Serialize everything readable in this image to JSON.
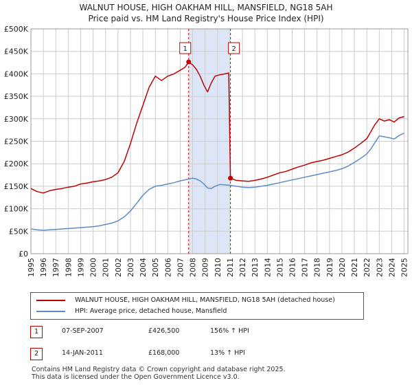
{
  "title": {
    "line1": "WALNUT HOUSE, HIGH OAKHAM HILL, MANSFIELD, NG18 5AH",
    "line2": "Price paid vs. HM Land Registry's House Price Index (HPI)"
  },
  "colors": {
    "property": "#c00000",
    "hpi": "#5b8cc8",
    "shade": "#dde6f7",
    "grid": "#cccccc",
    "marker_dash": "#c00000"
  },
  "chart_data": {
    "type": "line",
    "title": "WALNUT HOUSE, HIGH OAKHAM HILL, MANSFIELD, NG18 5AH",
    "xlabel": "",
    "ylabel": "",
    "xlim": [
      1995,
      2025.3
    ],
    "ylim": [
      0,
      500000
    ],
    "grid": true,
    "x_ticks": [
      "1995",
      "1996",
      "1997",
      "1998",
      "1999",
      "2000",
      "2001",
      "2002",
      "2003",
      "2004",
      "2005",
      "2006",
      "2007",
      "2008",
      "2009",
      "2010",
      "2011",
      "2012",
      "2013",
      "2014",
      "2015",
      "2016",
      "2017",
      "2018",
      "2019",
      "2020",
      "2021",
      "2022",
      "2023",
      "2024",
      "2025"
    ],
    "y_ticks": [
      {
        "value": 0,
        "label": "£0"
      },
      {
        "value": 50000,
        "label": "£50K"
      },
      {
        "value": 100000,
        "label": "£100K"
      },
      {
        "value": 150000,
        "label": "£150K"
      },
      {
        "value": 200000,
        "label": "£200K"
      },
      {
        "value": 250000,
        "label": "£250K"
      },
      {
        "value": 300000,
        "label": "£300K"
      },
      {
        "value": 350000,
        "label": "£350K"
      },
      {
        "value": 400000,
        "label": "£400K"
      },
      {
        "value": 450000,
        "label": "£450K"
      },
      {
        "value": 500000,
        "label": "£500K"
      }
    ],
    "shaded_region": [
      2007.68,
      2011.04
    ],
    "series": [
      {
        "name": "WALNUT HOUSE, HIGH OAKHAM HILL, MANSFIELD, NG18 5AH (detached house)",
        "color": "#c00000",
        "x": [
          1995.0,
          1995.5,
          1996.0,
          1996.5,
          1997.0,
          1997.5,
          1998.0,
          1998.5,
          1999.0,
          1999.5,
          2000.0,
          2000.5,
          2001.0,
          2001.5,
          2002.0,
          2002.5,
          2003.0,
          2003.5,
          2004.0,
          2004.5,
          2005.0,
          2005.5,
          2006.0,
          2006.5,
          2007.0,
          2007.4,
          2007.68,
          2008.0,
          2008.3,
          2008.6,
          2008.9,
          2009.2,
          2009.5,
          2009.8,
          2010.2,
          2010.6,
          2010.9,
          2011.04,
          2011.5,
          2012.0,
          2012.5,
          2013.0,
          2013.5,
          2014.0,
          2014.5,
          2015.0,
          2015.5,
          2016.0,
          2016.5,
          2017.0,
          2017.5,
          2018.0,
          2018.5,
          2019.0,
          2019.5,
          2020.0,
          2020.5,
          2021.0,
          2021.5,
          2022.0,
          2022.3,
          2022.6,
          2023.0,
          2023.4,
          2023.8,
          2024.2,
          2024.6,
          2025.0
        ],
        "values": [
          145000,
          138000,
          135000,
          140000,
          143000,
          145000,
          148000,
          150000,
          155000,
          157000,
          160000,
          162000,
          165000,
          170000,
          180000,
          205000,
          245000,
          290000,
          330000,
          370000,
          395000,
          385000,
          395000,
          400000,
          408000,
          415000,
          426500,
          420000,
          410000,
          395000,
          375000,
          360000,
          380000,
          395000,
          398000,
          400000,
          402000,
          168000,
          163000,
          162000,
          161000,
          163000,
          166000,
          170000,
          175000,
          180000,
          183000,
          188000,
          193000,
          197000,
          202000,
          205000,
          208000,
          212000,
          216000,
          220000,
          226000,
          235000,
          245000,
          256000,
          270000,
          285000,
          300000,
          295000,
          298000,
          293000,
          302000,
          305000
        ]
      },
      {
        "name": "HPI: Average price, detached house, Mansfield",
        "color": "#5b8cc8",
        "x": [
          1995.0,
          1995.5,
          1996.0,
          1996.5,
          1997.0,
          1997.5,
          1998.0,
          1998.5,
          1999.0,
          1999.5,
          2000.0,
          2000.5,
          2001.0,
          2001.5,
          2002.0,
          2002.5,
          2003.0,
          2003.5,
          2004.0,
          2004.5,
          2005.0,
          2005.5,
          2006.0,
          2006.5,
          2007.0,
          2007.5,
          2008.0,
          2008.3,
          2008.6,
          2008.9,
          2009.2,
          2009.5,
          2009.8,
          2010.2,
          2010.6,
          2011.0,
          2011.5,
          2012.0,
          2012.5,
          2013.0,
          2013.5,
          2014.0,
          2014.5,
          2015.0,
          2015.5,
          2016.0,
          2016.5,
          2017.0,
          2017.5,
          2018.0,
          2018.5,
          2019.0,
          2019.5,
          2020.0,
          2020.5,
          2021.0,
          2021.5,
          2022.0,
          2022.3,
          2022.6,
          2023.0,
          2023.4,
          2023.8,
          2024.2,
          2024.6,
          2025.0
        ],
        "values": [
          55000,
          53000,
          52000,
          53000,
          54000,
          55000,
          56000,
          57000,
          58000,
          59000,
          60000,
          62000,
          65000,
          68000,
          73000,
          82000,
          95000,
          112000,
          130000,
          143000,
          150000,
          152000,
          155000,
          158000,
          162000,
          165000,
          168000,
          166000,
          162000,
          155000,
          146000,
          145000,
          150000,
          154000,
          153000,
          152000,
          150000,
          148000,
          147000,
          148000,
          150000,
          152000,
          155000,
          158000,
          161000,
          164000,
          167000,
          170000,
          173000,
          176000,
          179000,
          182000,
          185000,
          189000,
          195000,
          203000,
          212000,
          222000,
          232000,
          245000,
          262000,
          260000,
          258000,
          255000,
          263000,
          268000
        ]
      }
    ],
    "sales": [
      {
        "id": "1",
        "x": 2007.68,
        "value": 426500,
        "date": "07-SEP-2007",
        "price": "£426,500",
        "hpi": "156% ↑ HPI"
      },
      {
        "id": "2",
        "x": 2011.04,
        "value": 168000,
        "date": "14-JAN-2011",
        "price": "£168,000",
        "hpi": "13% ↑ HPI"
      }
    ]
  },
  "legend": {
    "property_label": "WALNUT HOUSE, HIGH OAKHAM HILL, MANSFIELD, NG18 5AH (detached house)",
    "hpi_label": "HPI: Average price, detached house, Mansfield"
  },
  "footer": {
    "line1": "Contains HM Land Registry data © Crown copyright and database right 2025.",
    "line2": "This data is licensed under the Open Government Licence v3.0."
  }
}
